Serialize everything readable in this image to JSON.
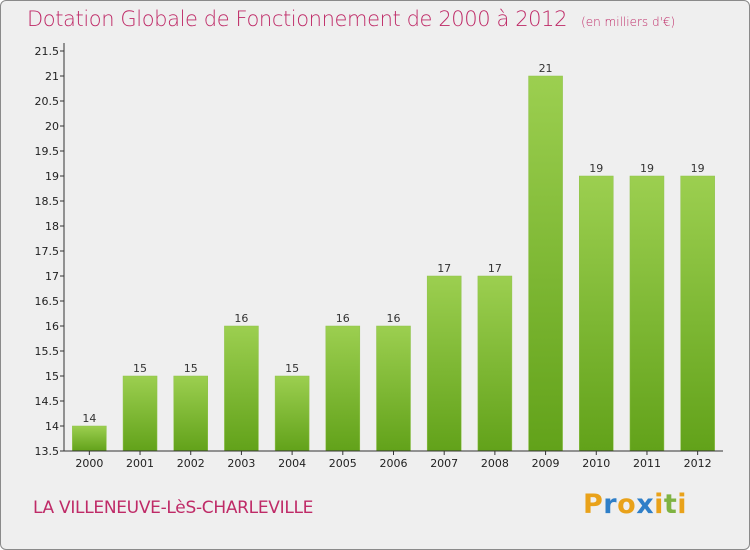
{
  "chart_data": {
    "type": "bar",
    "title": "Dotation Globale de Fonctionnement de 2000 à 2012",
    "subtitle": "(en milliers d'€)",
    "categories": [
      "2000",
      "2001",
      "2002",
      "2003",
      "2004",
      "2005",
      "2006",
      "2007",
      "2008",
      "2009",
      "2010",
      "2011",
      "2012"
    ],
    "values": [
      14,
      15,
      15,
      16,
      15,
      16,
      16,
      17,
      17,
      21,
      19,
      19,
      19
    ],
    "value_labels": [
      "14",
      "15",
      "15",
      "16",
      "15",
      "16",
      "16",
      "17",
      "17",
      "21",
      "19",
      "19",
      "19"
    ],
    "yticks": [
      "13.5",
      "14",
      "14.5",
      "15",
      "15.5",
      "16",
      "16.5",
      "17",
      "17.5",
      "18",
      "18.5",
      "19",
      "19.5",
      "20",
      "20.5",
      "21",
      "21.5"
    ],
    "ylim": [
      13.5,
      21.5
    ],
    "xlabel": "",
    "ylabel": "",
    "grid": false,
    "bar_color_top": "#9ccf50",
    "bar_color_bottom": "#62a21a"
  },
  "commune_name": "LA VILLENEUVE-LèS-CHARLEVILLE",
  "logo_text": "Proxiti",
  "colors": {
    "title": "#bf2a67",
    "commune": "#bf2a67",
    "axis": "#333333",
    "logo": [
      "#e9a21a",
      "#2f7fc8",
      "#e9a21a",
      "#2f7fc8",
      "#e9a21a",
      "#7fb342",
      "#e9a21a"
    ]
  }
}
